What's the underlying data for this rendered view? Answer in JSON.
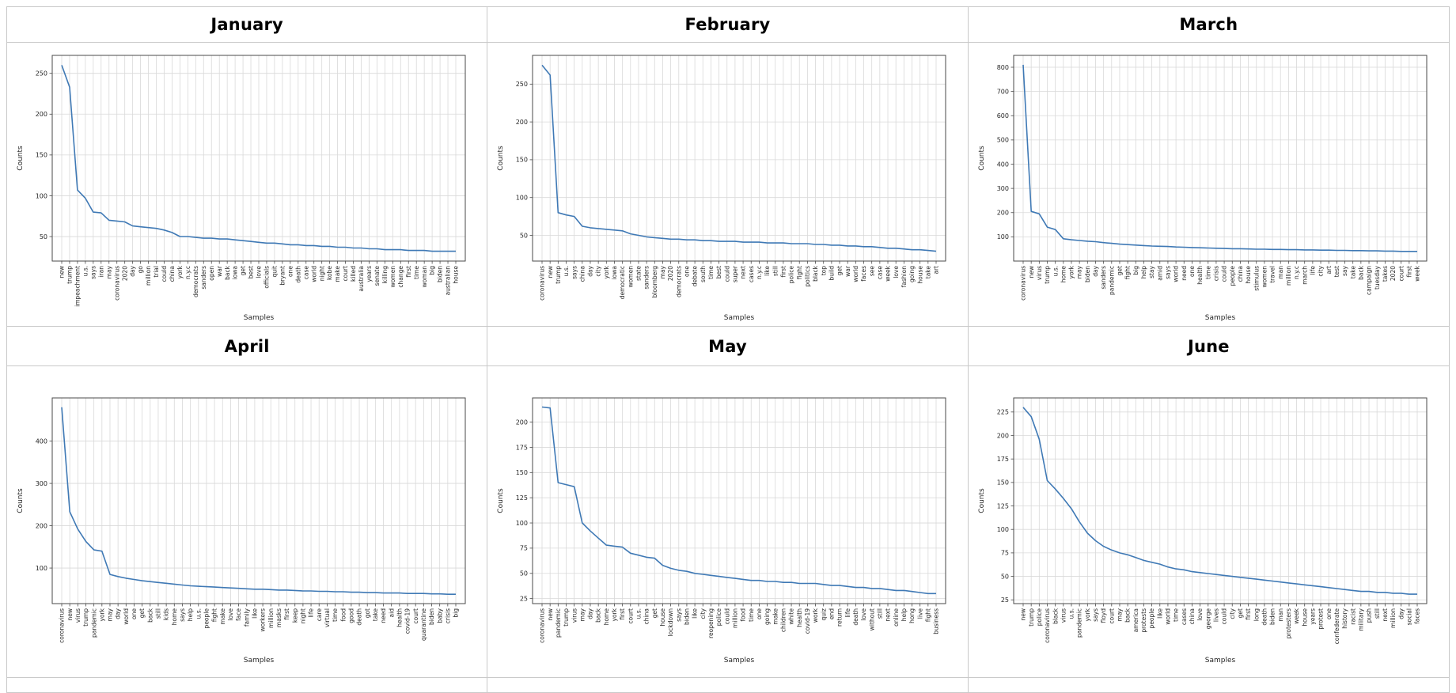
{
  "page": {
    "title_row_months": [
      "January",
      "February",
      "March",
      "April",
      "May",
      "June"
    ]
  },
  "colors": {
    "line": "#3f79b5",
    "grid": "#d9d9d9",
    "frame": "#4a4a4a",
    "rule": "#c9c9c9",
    "text": "#262626"
  },
  "chart_data": [
    {
      "type": "line",
      "title": "January",
      "xlabel": "Samples",
      "ylabel": "Counts",
      "legend": null,
      "grid": true,
      "yticks": [
        50,
        100,
        150,
        200,
        250
      ],
      "ylim": [
        20,
        272
      ],
      "categories": [
        "new",
        "trump",
        "impeachment",
        "u.s.",
        "says",
        "iran",
        "may",
        "coronavirus",
        "2020",
        "day",
        "go",
        "million",
        "trial",
        "could",
        "china",
        "york",
        "n.y.c",
        "democrats",
        "sanders",
        "open",
        "war",
        "back",
        "iowa",
        "get",
        "best",
        "love",
        "officials",
        "quit",
        "bryant",
        "one",
        "death",
        "case",
        "world",
        "night",
        "kobe",
        "make",
        "court",
        "killed",
        "australia",
        "years",
        "senate",
        "killing",
        "women",
        "change",
        "first",
        "time",
        "woman",
        "big",
        "biden",
        "australian",
        "house"
      ],
      "values": [
        260,
        233,
        107,
        97,
        80,
        79,
        70,
        69,
        68,
        63,
        62,
        61,
        60,
        58,
        55,
        50,
        50,
        49,
        48,
        48,
        47,
        47,
        46,
        45,
        44,
        43,
        42,
        42,
        41,
        40,
        40,
        39,
        39,
        38,
        38,
        37,
        37,
        36,
        36,
        35,
        35,
        34,
        34,
        34,
        33,
        33,
        33,
        32,
        32,
        32,
        32
      ]
    },
    {
      "type": "line",
      "title": "February",
      "xlabel": "Samples",
      "ylabel": "Counts",
      "legend": null,
      "grid": true,
      "yticks": [
        50,
        100,
        150,
        200,
        250
      ],
      "ylim": [
        16,
        288
      ],
      "categories": [
        "coronavirus",
        "new",
        "trump",
        "u.s.",
        "says",
        "china",
        "day",
        "city",
        "york",
        "iowa",
        "democratic",
        "women",
        "state",
        "sanders",
        "bloomberg",
        "may",
        "2020",
        "democrats",
        "one",
        "debate",
        "south",
        "time",
        "best",
        "could",
        "super",
        "next",
        "cases",
        "n.y.c",
        "like",
        "still",
        "first",
        "police",
        "fight",
        "politics",
        "black",
        "top",
        "build",
        "get",
        "war",
        "world",
        "faces",
        "see",
        "case",
        "week",
        "love",
        "fashion",
        "going",
        "house",
        "take",
        "art"
      ],
      "values": [
        275,
        262,
        80,
        77,
        75,
        62,
        60,
        59,
        58,
        57,
        56,
        52,
        50,
        48,
        47,
        46,
        45,
        45,
        44,
        44,
        43,
        43,
        42,
        42,
        42,
        41,
        41,
        41,
        40,
        40,
        40,
        39,
        39,
        39,
        38,
        38,
        37,
        37,
        36,
        36,
        35,
        35,
        34,
        33,
        33,
        32,
        31,
        31,
        30,
        29
      ]
    },
    {
      "type": "line",
      "title": "March",
      "xlabel": "Samples",
      "ylabel": "Counts",
      "legend": null,
      "grid": true,
      "yticks": [
        100,
        200,
        300,
        400,
        500,
        600,
        700,
        800
      ],
      "ylim": [
        0,
        849
      ],
      "categories": [
        "coronavirus",
        "new",
        "virus",
        "trump",
        "u.s.",
        "home",
        "york",
        "may",
        "biden",
        "day",
        "sanders",
        "pandemic",
        "get",
        "fight",
        "big",
        "help",
        "stay",
        "amid",
        "says",
        "world",
        "need",
        "one",
        "health",
        "time",
        "crisis",
        "could",
        "people",
        "china",
        "house",
        "stimulus",
        "women",
        "travel",
        "man",
        "million",
        "n.y.c",
        "march",
        "life",
        "city",
        "art",
        "test",
        "say",
        "take",
        "back",
        "campaign",
        "tuesday",
        "takes",
        "2020",
        "court",
        "first",
        "week"
      ],
      "values": [
        810,
        205,
        195,
        140,
        130,
        92,
        88,
        85,
        82,
        80,
        76,
        73,
        70,
        68,
        66,
        64,
        62,
        61,
        60,
        58,
        57,
        56,
        55,
        54,
        53,
        52,
        51,
        51,
        50,
        49,
        49,
        48,
        48,
        47,
        47,
        46,
        46,
        45,
        45,
        44,
        44,
        43,
        43,
        42,
        42,
        41,
        41,
        40,
        40,
        40
      ]
    },
    {
      "type": "line",
      "title": "April",
      "xlabel": "Samples",
      "ylabel": "Counts",
      "legend": null,
      "grid": true,
      "yticks": [
        100,
        200,
        300,
        400
      ],
      "ylim": [
        16,
        502
      ],
      "categories": [
        "coronavirus",
        "new",
        "virus",
        "trump",
        "pandemic",
        "york",
        "may",
        "day",
        "world",
        "one",
        "get",
        "back",
        "still",
        "kids",
        "home",
        "says",
        "help",
        "u.s.",
        "people",
        "fight",
        "make",
        "love",
        "face",
        "family",
        "like",
        "workers",
        "million",
        "masks",
        "first",
        "keep",
        "night",
        "life",
        "care",
        "virtual",
        "time",
        "food",
        "good",
        "death",
        "got",
        "take",
        "need",
        "aid",
        "health",
        "covid-19",
        "court",
        "quarantine",
        "biden",
        "baby",
        "crisis",
        "big"
      ],
      "values": [
        480,
        233,
        192,
        163,
        143,
        140,
        85,
        80,
        76,
        73,
        70,
        68,
        66,
        64,
        62,
        60,
        58,
        57,
        56,
        55,
        54,
        53,
        52,
        51,
        50,
        50,
        49,
        48,
        48,
        47,
        46,
        46,
        45,
        45,
        44,
        44,
        43,
        43,
        42,
        42,
        41,
        41,
        41,
        40,
        40,
        40,
        39,
        39,
        38,
        38
      ]
    },
    {
      "type": "line",
      "title": "May",
      "xlabel": "Samples",
      "ylabel": "Counts",
      "legend": null,
      "grid": true,
      "yticks": [
        25,
        50,
        75,
        100,
        125,
        150,
        175,
        200
      ],
      "ylim": [
        20,
        224
      ],
      "categories": [
        "coronavirus",
        "new",
        "pandemic",
        "trump",
        "virus",
        "may",
        "day",
        "back",
        "home",
        "york",
        "first",
        "court",
        "u.s.",
        "china",
        "get",
        "house",
        "lockdown",
        "says",
        "biden",
        "like",
        "city",
        "reopening",
        "police",
        "could",
        "million",
        "food",
        "time",
        "one",
        "going",
        "make",
        "children",
        "white",
        "health",
        "covid-19",
        "work",
        "quiz",
        "end",
        "return",
        "life",
        "death",
        "love",
        "without",
        "still",
        "next",
        "online",
        "help",
        "hong",
        "live",
        "fight",
        "business"
      ],
      "values": [
        215,
        214,
        140,
        138,
        136,
        100,
        92,
        85,
        78,
        77,
        76,
        70,
        68,
        66,
        65,
        58,
        55,
        53,
        52,
        50,
        49,
        48,
        47,
        46,
        45,
        44,
        43,
        43,
        42,
        42,
        41,
        41,
        40,
        40,
        40,
        39,
        38,
        38,
        37,
        36,
        36,
        35,
        35,
        34,
        33,
        33,
        32,
        31,
        30,
        30
      ]
    },
    {
      "type": "line",
      "title": "June",
      "xlabel": "Samples",
      "ylabel": "Counts",
      "legend": null,
      "grid": true,
      "yticks": [
        25,
        50,
        75,
        100,
        125,
        150,
        175,
        200,
        225
      ],
      "ylim": [
        21,
        240
      ],
      "categories": [
        "new",
        "trump",
        "police",
        "coronavirus",
        "black",
        "virus",
        "u.s.",
        "pandemic",
        "york",
        "says",
        "floyd",
        "court",
        "may",
        "back",
        "america",
        "protests",
        "people",
        "like",
        "world",
        "time",
        "cases",
        "china",
        "love",
        "george",
        "lives",
        "could",
        "city",
        "get",
        "first",
        "long",
        "death",
        "biden",
        "man",
        "protesters",
        "week",
        "house",
        "years",
        "protest",
        "one",
        "confederate",
        "history",
        "racist",
        "military",
        "push",
        "still",
        "next",
        "million",
        "day",
        "social",
        "faces"
      ],
      "values": [
        230,
        220,
        196,
        152,
        143,
        133,
        122,
        108,
        96,
        88,
        82,
        78,
        75,
        73,
        70,
        67,
        65,
        63,
        60,
        58,
        57,
        55,
        54,
        53,
        52,
        51,
        50,
        49,
        48,
        47,
        46,
        45,
        44,
        43,
        42,
        41,
        40,
        39,
        38,
        37,
        36,
        35,
        34,
        34,
        33,
        33,
        32,
        32,
        31,
        31
      ]
    }
  ]
}
